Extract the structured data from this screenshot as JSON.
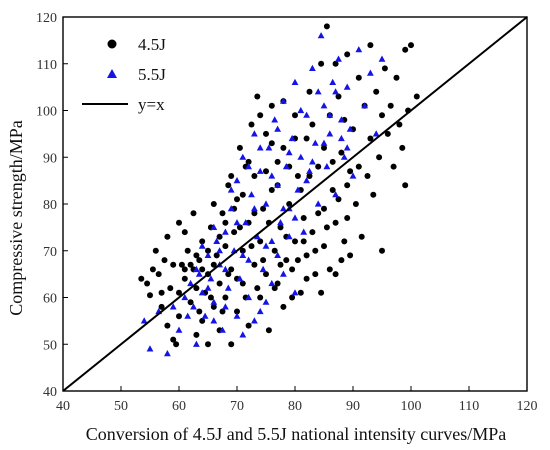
{
  "chart_data": {
    "type": "scatter",
    "title": "",
    "xlabel": "Conversion of 4.5J and 5.5J national intensity curves/MPa",
    "ylabel": "Compressive strength/MPa",
    "xlim": [
      40,
      120
    ],
    "ylim": [
      40,
      120
    ],
    "x_ticks": [
      "40",
      "50",
      "60",
      "70",
      "80",
      "90",
      "100",
      "110",
      "120"
    ],
    "y_ticks": [
      "40",
      "50",
      "60",
      "70",
      "80",
      "90",
      "100",
      "110",
      "120"
    ],
    "grid": false,
    "legend_position": "top-left",
    "series": [
      {
        "name": "4.5J",
        "marker": "circle",
        "color": "#000000",
        "points": [
          [
            53.5,
            64
          ],
          [
            54.5,
            63
          ],
          [
            55,
            60.5
          ],
          [
            55.5,
            66
          ],
          [
            56.5,
            65
          ],
          [
            57,
            61
          ],
          [
            57.5,
            68
          ],
          [
            57,
            58
          ],
          [
            58,
            54
          ],
          [
            58.5,
            62
          ],
          [
            59,
            51
          ],
          [
            59.5,
            50
          ],
          [
            60,
            56
          ],
          [
            60,
            61
          ],
          [
            60.5,
            67
          ],
          [
            61,
            64
          ],
          [
            61.5,
            70
          ],
          [
            61,
            74
          ],
          [
            62,
            59
          ],
          [
            62.5,
            66
          ],
          [
            63,
            52
          ],
          [
            63,
            62
          ],
          [
            63.5,
            68
          ],
          [
            64,
            72
          ],
          [
            64,
            55
          ],
          [
            64.5,
            61
          ],
          [
            65,
            50
          ],
          [
            65,
            65
          ],
          [
            65.5,
            75
          ],
          [
            66,
            58
          ],
          [
            66.5,
            69
          ],
          [
            67,
            53
          ],
          [
            67,
            63
          ],
          [
            67.5,
            78
          ],
          [
            68,
            71
          ],
          [
            68,
            60
          ],
          [
            68.5,
            84
          ],
          [
            69,
            50
          ],
          [
            69,
            66
          ],
          [
            69.5,
            74
          ],
          [
            70,
            57
          ],
          [
            70,
            81
          ],
          [
            70.5,
            92
          ],
          [
            71,
            63
          ],
          [
            71,
            70
          ],
          [
            71.5,
            88
          ],
          [
            72,
            54
          ],
          [
            72,
            76
          ],
          [
            72.5,
            97
          ],
          [
            73,
            67
          ],
          [
            73,
            86
          ],
          [
            73.5,
            103
          ],
          [
            74,
            60
          ],
          [
            74,
            72
          ],
          [
            74.5,
            79
          ],
          [
            75,
            95
          ],
          [
            75,
            65
          ],
          [
            75.5,
            53
          ],
          [
            76,
            83
          ],
          [
            76,
            101
          ],
          [
            76.5,
            70
          ],
          [
            77,
            63
          ],
          [
            77,
            89
          ],
          [
            77.5,
            75
          ],
          [
            78,
            58
          ],
          [
            78,
            92
          ],
          [
            78.5,
            68
          ],
          [
            79,
            80
          ],
          [
            79.5,
            66
          ],
          [
            80,
            99
          ],
          [
            80,
            72
          ],
          [
            80.5,
            86
          ],
          [
            81,
            61
          ],
          [
            81.5,
            77
          ],
          [
            82,
            94
          ],
          [
            82,
            69
          ],
          [
            82.5,
            104
          ],
          [
            83,
            74
          ],
          [
            83.5,
            65
          ],
          [
            84,
            88
          ],
          [
            84.5,
            110
          ],
          [
            85,
            79
          ],
          [
            85,
            71
          ],
          [
            85.5,
            118
          ],
          [
            86,
            99
          ],
          [
            86.5,
            83
          ],
          [
            87,
            76
          ],
          [
            87,
            65
          ],
          [
            87.5,
            103
          ],
          [
            88,
            91
          ],
          [
            88.5,
            72
          ],
          [
            89,
            112
          ],
          [
            89,
            84
          ],
          [
            89.5,
            69
          ],
          [
            90,
            96
          ],
          [
            90.5,
            80
          ],
          [
            91,
            107
          ],
          [
            91,
            88
          ],
          [
            91.5,
            73
          ],
          [
            92,
            101
          ],
          [
            92.5,
            86
          ],
          [
            93,
            114
          ],
          [
            93,
            94
          ],
          [
            93.5,
            82
          ],
          [
            94,
            104
          ],
          [
            94.5,
            90
          ],
          [
            95,
            99
          ],
          [
            95,
            70
          ],
          [
            95.5,
            109
          ],
          [
            96,
            95
          ],
          [
            96.5,
            101
          ],
          [
            97,
            88
          ],
          [
            97.5,
            107
          ],
          [
            98,
            97
          ],
          [
            98.5,
            92
          ],
          [
            99,
            113
          ],
          [
            99,
            84
          ],
          [
            99.5,
            100
          ],
          [
            100,
            114
          ],
          [
            101,
            103
          ],
          [
            56,
            70
          ],
          [
            58,
            73
          ],
          [
            59,
            67
          ],
          [
            60,
            76
          ],
          [
            61,
            66
          ],
          [
            62,
            67
          ],
          [
            62.5,
            78
          ],
          [
            63,
            69
          ],
          [
            63.5,
            57
          ],
          [
            64,
            66
          ],
          [
            65,
            70
          ],
          [
            65.5,
            60
          ],
          [
            66,
            80
          ],
          [
            66,
            67
          ],
          [
            67,
            73
          ],
          [
            67.5,
            57
          ],
          [
            68,
            76
          ],
          [
            68.5,
            65
          ],
          [
            69,
            86
          ],
          [
            69.5,
            79
          ],
          [
            70,
            64
          ],
          [
            70.5,
            75
          ],
          [
            71,
            82
          ],
          [
            71.5,
            60
          ],
          [
            72,
            89
          ],
          [
            72.5,
            71
          ],
          [
            73,
            78
          ],
          [
            73.5,
            62
          ],
          [
            74,
            99
          ],
          [
            74.5,
            68
          ],
          [
            75,
            87
          ],
          [
            75.5,
            76
          ],
          [
            76,
            93
          ],
          [
            76.5,
            62
          ],
          [
            77,
            84
          ],
          [
            77.5,
            67
          ],
          [
            78,
            102
          ],
          [
            78.5,
            73
          ],
          [
            79,
            88
          ],
          [
            79.5,
            60
          ],
          [
            80,
            94
          ],
          [
            80.5,
            68
          ],
          [
            81,
            83
          ],
          [
            81.5,
            72
          ],
          [
            82,
            64
          ],
          [
            82.5,
            86
          ],
          [
            83,
            97
          ],
          [
            83.5,
            70
          ],
          [
            84,
            78
          ],
          [
            84.5,
            61
          ],
          [
            85,
            92
          ],
          [
            85.5,
            75
          ],
          [
            86,
            66
          ],
          [
            86.5,
            89
          ],
          [
            87,
            110
          ],
          [
            87.5,
            81
          ],
          [
            88,
            68
          ],
          [
            88.5,
            98
          ],
          [
            89,
            77
          ],
          [
            89.5,
            87
          ]
        ]
      },
      {
        "name": "5.5J",
        "marker": "triangle",
        "color": "#1414e6",
        "points": [
          [
            54,
            55
          ],
          [
            55,
            49
          ],
          [
            56.5,
            57
          ],
          [
            58,
            48
          ],
          [
            59,
            58
          ],
          [
            60,
            53
          ],
          [
            61,
            60
          ],
          [
            61.5,
            56
          ],
          [
            62,
            63
          ],
          [
            62.5,
            58
          ],
          [
            63,
            50
          ],
          [
            63.5,
            65
          ],
          [
            64,
            61
          ],
          [
            64.5,
            56
          ],
          [
            65,
            69
          ],
          [
            65.5,
            64
          ],
          [
            66,
            59
          ],
          [
            66.5,
            72
          ],
          [
            67,
            67
          ],
          [
            67.5,
            53
          ],
          [
            68,
            74
          ],
          [
            68.5,
            62
          ],
          [
            69,
            79
          ],
          [
            69.5,
            70
          ],
          [
            70,
            85
          ],
          [
            70.5,
            64
          ],
          [
            71,
            90
          ],
          [
            71.5,
            76
          ],
          [
            72,
            68
          ],
          [
            72.5,
            82
          ],
          [
            73,
            95
          ],
          [
            73.5,
            73
          ],
          [
            74,
            87
          ],
          [
            74.5,
            66
          ],
          [
            75,
            80
          ],
          [
            75.5,
            92
          ],
          [
            76,
            72
          ],
          [
            76.5,
            98
          ],
          [
            77,
            84
          ],
          [
            77.5,
            76
          ],
          [
            78,
            102
          ],
          [
            78.5,
            88
          ],
          [
            79,
            79
          ],
          [
            79.5,
            94
          ],
          [
            80,
            106
          ],
          [
            80.5,
            83
          ],
          [
            81,
            90
          ],
          [
            81.5,
            74
          ],
          [
            82,
            99
          ],
          [
            82.5,
            87
          ],
          [
            83,
            109
          ],
          [
            83.5,
            93
          ],
          [
            84,
            80
          ],
          [
            84.5,
            116
          ],
          [
            85,
            101
          ],
          [
            85.5,
            88
          ],
          [
            86,
            95
          ],
          [
            86.5,
            106
          ],
          [
            87,
            82
          ],
          [
            87.5,
            111
          ],
          [
            88,
            98
          ],
          [
            88.5,
            90
          ],
          [
            89,
            105
          ],
          [
            89.5,
            96
          ],
          [
            90,
            86
          ],
          [
            91,
            113
          ],
          [
            92,
            101
          ],
          [
            93,
            108
          ],
          [
            94,
            95
          ],
          [
            95,
            111
          ],
          [
            63,
            66
          ],
          [
            64,
            71
          ],
          [
            65,
            62
          ],
          [
            66,
            75
          ],
          [
            67,
            70
          ],
          [
            68,
            66
          ],
          [
            69,
            83
          ],
          [
            70,
            76
          ],
          [
            71,
            69
          ],
          [
            72,
            88
          ],
          [
            73,
            79
          ],
          [
            74,
            92
          ],
          [
            75,
            71
          ],
          [
            76,
            86
          ],
          [
            77,
            96
          ],
          [
            78,
            79
          ],
          [
            79,
            91
          ],
          [
            80,
            77
          ],
          [
            81,
            100
          ],
          [
            82,
            85
          ],
          [
            83,
            89
          ],
          [
            84,
            104
          ],
          [
            85,
            93
          ],
          [
            86,
            99
          ],
          [
            87,
            104
          ],
          [
            88,
            94
          ],
          [
            89,
            92
          ],
          [
            70,
            56
          ],
          [
            72,
            60
          ],
          [
            74,
            57
          ],
          [
            76,
            63
          ],
          [
            78,
            65
          ],
          [
            80,
            61
          ],
          [
            66,
            55
          ],
          [
            68,
            58
          ],
          [
            71,
            52
          ],
          [
            73,
            55
          ],
          [
            75,
            59
          ],
          [
            77,
            69
          ],
          [
            79,
            73
          ]
        ]
      }
    ],
    "reference_line": {
      "name": "y=x",
      "from": [
        40,
        40
      ],
      "to": [
        120,
        120
      ],
      "color": "#000000"
    }
  }
}
